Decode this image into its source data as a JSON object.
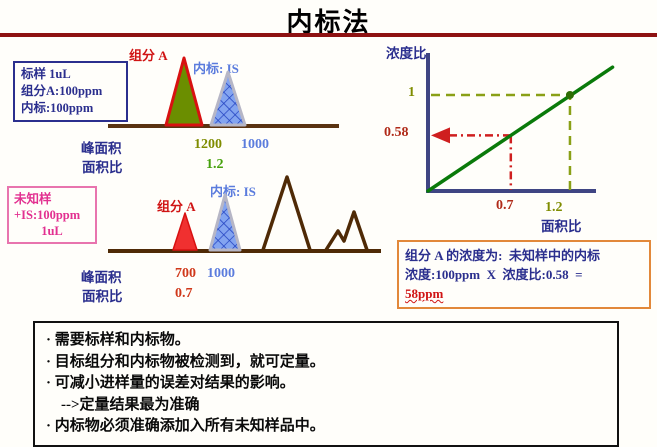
{
  "title": "内标法",
  "standard_panel": {
    "info_box": {
      "line1": "标样 1uL",
      "line2": "组分A:100ppm",
      "line3": "内标:100ppm"
    },
    "component_label": "组分 A",
    "is_label": "内标: IS",
    "peak_area_label": "峰面积",
    "area_ratio_label": "面积比",
    "component_area": "1200",
    "is_area": "1000",
    "area_ratio": "1.2"
  },
  "unknown_panel": {
    "info_box": {
      "line1": "未知样",
      "line2": "+IS:100ppm",
      "line3": "1uL"
    },
    "component_label": "组分 A",
    "is_label": "内标: IS",
    "peak_area_label": "峰面积",
    "area_ratio_label": "面积比",
    "component_area": "700",
    "is_area": "1000",
    "area_ratio": "0.7"
  },
  "calibration_chart": {
    "y_axis_label": "浓度比",
    "x_axis_label": "面积比",
    "y_tick_standard": "1",
    "y_tick_unknown": "0.58",
    "x_tick_unknown": "0.7",
    "x_tick_standard": "1.2"
  },
  "chart_data": {
    "type": "line",
    "xlabel": "面积比",
    "ylabel": "浓度比",
    "xlim": [
      0,
      1.6
    ],
    "ylim": [
      0,
      1.35
    ],
    "calibration_line": {
      "from": [
        0,
        0
      ],
      "to": [
        1.56,
        1.29
      ]
    },
    "standard_point": [
      1.2,
      1
    ],
    "unknown_point": [
      0.7,
      0.58
    ],
    "x_ticks": [
      0.7,
      1.2
    ],
    "y_ticks": [
      0.58,
      1
    ],
    "grid": false,
    "legend": false
  },
  "result_box": {
    "line1": "组分 A 的浓度为:  未知样中的内标",
    "line2": "浓度:100ppm  X  浓度比:0.58  =",
    "result": "58ppm"
  },
  "notes_box": {
    "lines": {
      "l1": "· 需要标样和内标物。",
      "l2": "· 目标组分和内标物被检测到，就可定量。",
      "l3": "· 可减小进样量的误差对结果的影响。",
      "l4": "-->定量结果最为准确",
      "l5": "· 内标物必须准确添加入所有未知样品中。"
    }
  },
  "colors": {
    "title_rule": "#8e1212",
    "axis": "#3f4583",
    "cal_line": "#0a7a0a",
    "guide_standard": "#8aa016",
    "guide_unknown": "#cf1f1f",
    "point": "#2f6d05",
    "component_peak_standard_fill": "#6b8e00",
    "component_peak_unknown_fill": "#f03030",
    "component_peak_stroke": "#d81111",
    "is_peak_fill": "#83a4f0",
    "is_peak_stroke": "#b6b6c6",
    "baseline": "#5a3311"
  }
}
